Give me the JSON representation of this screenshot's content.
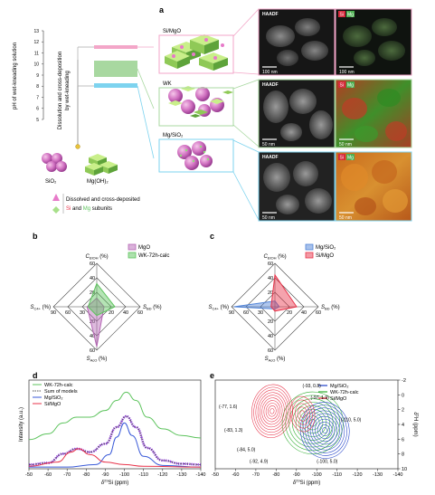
{
  "panels": {
    "a": "a",
    "b": "b",
    "c": "c",
    "d": "d",
    "e": "e"
  },
  "panel_a": {
    "ph_axis_label": "pH of wet-kneading solution",
    "ph_ticks": [
      "13",
      "12",
      "11",
      "10",
      "9",
      "8",
      "7",
      "6",
      "5"
    ],
    "process_label_1": "Dissolution and cross-deposition",
    "process_label_2": "by wet-kneading",
    "sio2_label": "SiO₂",
    "mgoh2_label": "Mg(OH)₂",
    "legend_line1": "Dissolved and cross-deposited",
    "legend_si": "Si",
    "legend_and": " and ",
    "legend_mg": "Mg",
    "legend_subunits": " subunits",
    "materials": [
      {
        "name": "Si/MgO",
        "color": "#f3a6c8"
      },
      {
        "name": "WK",
        "color": "#a8d8a0"
      },
      {
        "name": "Mg/SiO₂",
        "color": "#7dd3ef"
      }
    ],
    "micro_rows": [
      {
        "haadf": "HAADF",
        "el_si": "Si",
        "el_mg": "Mg",
        "scale_left": "100 nm",
        "scale_right": "100 nm"
      },
      {
        "haadf": "HAADF",
        "el_si": "Si",
        "el_mg": "Mg",
        "scale_left": "50 nm",
        "scale_right": "50 nm"
      },
      {
        "haadf": "HAADF",
        "el_si": "Si",
        "el_mg": "Mg",
        "scale_left": "50 nm",
        "scale_right": "50 nm"
      }
    ]
  },
  "chart_data": [
    {
      "type": "radar",
      "panel": "b",
      "axes": [
        "C_EtOH (%)",
        "S_BD (%)",
        "S_AcO (%)",
        "S_C4+ (%)"
      ],
      "axis_top": "C",
      "axis_top_sub": "EtOH",
      "axis_right": "S",
      "axis_right_sub": "BD",
      "axis_bottom": "S",
      "axis_bottom_sub": "AcO",
      "axis_left": "S",
      "axis_left_sub": "C4+",
      "unit": "(%)",
      "ticks": [
        "60",
        "40",
        "20",
        "20",
        "40",
        "60",
        "60",
        "40",
        "20",
        "90",
        "60",
        "30"
      ],
      "series": [
        {
          "name": "MgO",
          "color": "#b565b5",
          "values": [
            12,
            10,
            55,
            20
          ]
        },
        {
          "name": "WK-72h-calc",
          "color": "#5cc35c",
          "values": [
            32,
            25,
            12,
            18
          ]
        }
      ]
    },
    {
      "type": "radar",
      "panel": "c",
      "axes": [
        "C_EtOH (%)",
        "S_BD (%)",
        "S_AcO (%)",
        "S_C4+ (%)"
      ],
      "axis_top": "C",
      "axis_top_sub": "EtOH",
      "axis_right": "S",
      "axis_right_sub": "BD",
      "axis_bottom": "S",
      "axis_bottom_sub": "AcO",
      "axis_left": "S",
      "axis_left_sub": "C4+",
      "unit": "(%)",
      "ticks": [
        "60",
        "40",
        "20",
        "20",
        "40",
        "60",
        "60",
        "40",
        "20",
        "90",
        "60",
        "30"
      ],
      "series": [
        {
          "name": "Mg/SiO₂",
          "color": "#4f83d8",
          "values": [
            8,
            6,
            3,
            85
          ]
        },
        {
          "name": "Si/MgO",
          "color": "#e8334a",
          "values": [
            44,
            30,
            6,
            8
          ]
        }
      ]
    },
    {
      "type": "line",
      "panel": "d",
      "xlabel_pre": "δ",
      "xlabel_sup": "29",
      "xlabel_post": "Si (ppm)",
      "ylabel": "Intensity (a.u.)",
      "xlim": [
        -50,
        -140
      ],
      "xticks": [
        "-50",
        "-60",
        "-70",
        "-80",
        "-90",
        "-100",
        "-110",
        "-120",
        "-130",
        "-140"
      ],
      "series": [
        {
          "name": "WK-72h-calc",
          "color": "#5cc35c",
          "x": [
            -50,
            -60,
            -68,
            -75,
            -82,
            -90,
            -96,
            -101,
            -106,
            -112,
            -120,
            -130,
            -140
          ],
          "y": [
            0.35,
            0.42,
            0.55,
            0.62,
            0.62,
            0.7,
            0.82,
            0.92,
            0.82,
            0.62,
            0.48,
            0.4,
            0.37
          ]
        },
        {
          "name": "Sum of models",
          "color": "#555555",
          "dashed": true,
          "x": [
            -50,
            -60,
            -68,
            -75,
            -82,
            -90,
            -96,
            -101,
            -106,
            -112,
            -120,
            -130,
            -140
          ],
          "y": [
            0.05,
            0.07,
            0.18,
            0.24,
            0.2,
            0.3,
            0.5,
            0.63,
            0.5,
            0.25,
            0.1,
            0.06,
            0.05
          ]
        },
        {
          "name": "Mg/SiO₂",
          "color": "#3a5ad8",
          "x": [
            -50,
            -70,
            -85,
            -92,
            -96,
            -100,
            -104,
            -110,
            -120,
            -140
          ],
          "y": [
            0.02,
            0.02,
            0.05,
            0.17,
            0.38,
            0.55,
            0.4,
            0.15,
            0.04,
            0.02
          ]
        },
        {
          "name": "Si/MgO",
          "color": "#e8334a",
          "x": [
            -50,
            -65,
            -72,
            -76,
            -82,
            -90,
            -100,
            -110,
            -140
          ],
          "y": [
            0.03,
            0.08,
            0.2,
            0.24,
            0.17,
            0.08,
            0.05,
            0.03,
            0.02
          ]
        }
      ],
      "purple_dotted_series": {
        "color": "#8a2be2",
        "x": [
          -50,
          -60,
          -68,
          -75,
          -82,
          -90,
          -96,
          -101,
          -106,
          -112,
          -120,
          -130,
          -140
        ],
        "y": [
          0.05,
          0.07,
          0.18,
          0.24,
          0.2,
          0.3,
          0.5,
          0.63,
          0.5,
          0.25,
          0.1,
          0.06,
          0.05
        ]
      }
    },
    {
      "type": "contour",
      "panel": "e",
      "xlabel_pre": "δ",
      "xlabel_sup": "29",
      "xlabel_post": "Si (ppm)",
      "ylabel_pre": "δ",
      "ylabel_sup": "1",
      "ylabel_post": "H (ppm)",
      "xticks": [
        "-50",
        "-60",
        "-70",
        "-80",
        "-90",
        "-100",
        "-110",
        "-120",
        "-130",
        "-140"
      ],
      "yticks": [
        "-2",
        "0",
        "2",
        "4",
        "6",
        "8",
        "10"
      ],
      "xlim": [
        -50,
        -140
      ],
      "ylim": [
        -2,
        10
      ],
      "series": [
        {
          "name": "Mg/SiO₂",
          "color": "#1f3fc8"
        },
        {
          "name": "WK-72h-calc",
          "color": "#2fae2f"
        },
        {
          "name": "Si/MgO",
          "color": "#e8334a"
        }
      ],
      "annotations": [
        "(-93, 0.8)",
        "(-97, 1.9)",
        "(-77, 1.6)",
        "(-83, 1.3)",
        "(-84, 5.0)",
        "(-92, 4.9)",
        "(-110, 5.0)",
        "(-100, 5.0)"
      ]
    }
  ]
}
